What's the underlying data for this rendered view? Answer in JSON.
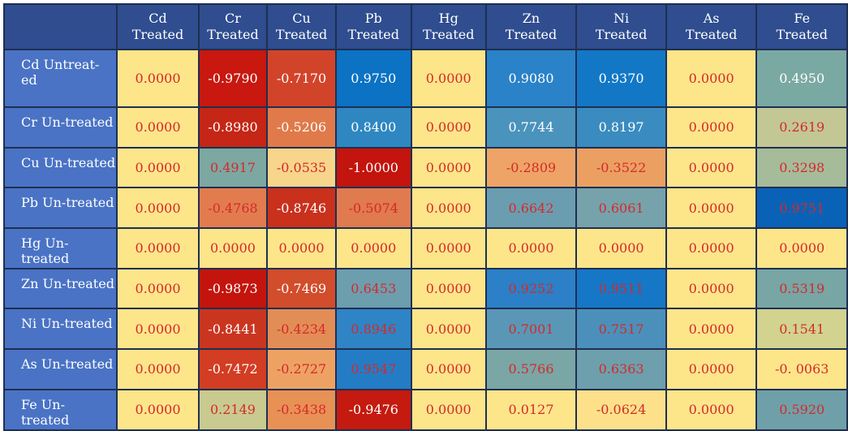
{
  "header": {
    "columns": [
      [
        "Cd",
        "Treated"
      ],
      [
        "Cr",
        "Treated"
      ],
      [
        "Cu",
        "Treated"
      ],
      [
        "Pb",
        "Treated"
      ],
      [
        "Hg",
        "Treated"
      ],
      [
        "Zn",
        "Treated"
      ],
      [
        "Ni",
        "Treated"
      ],
      [
        "As",
        "Treated"
      ],
      [
        "Fe",
        "Treated"
      ]
    ]
  },
  "rows": [
    {
      "label": "Cd Untreat- ed",
      "cells": [
        "0.0000",
        "-0.9790",
        "-0.7170",
        "0.9750",
        "0.0000",
        "0.9080",
        "0.9370",
        "0.0000",
        "0.4950"
      ]
    },
    {
      "label": "Cr Un-treated",
      "cells": [
        "0.0000",
        "-0.8980",
        "-0.5206",
        "0.8400",
        "0.0000",
        "0.7744",
        "0.8197",
        "0.0000",
        "0.2619"
      ]
    },
    {
      "label": "Cu Un-treated",
      "cells": [
        "0.0000",
        "0.4917",
        "-0.0535",
        "-1.0000",
        "0.0000",
        "-0.2809",
        "-0.3522",
        "0.0000",
        "0.3298"
      ]
    },
    {
      "label": "Pb Un-treated",
      "cells": [
        "0.0000",
        "-0.4768",
        "-0.8746",
        "-0.5074",
        "0.0000",
        "0.6642",
        "0.6061",
        "0.0000",
        "0.9751"
      ]
    },
    {
      "label": "Hg Un-treated",
      "cells": [
        "0.0000",
        "0.0000",
        "0.0000",
        "0.0000",
        "0.0000",
        "0.0000",
        "0.0000",
        "0.0000",
        "0.0000"
      ]
    },
    {
      "label": "Zn Un-treated",
      "cells": [
        "0.0000",
        "-0.9873",
        "-0.7469",
        "0.6453",
        "0.0000",
        "0.9252",
        "0.9511",
        "0.0000",
        "0.5319"
      ]
    },
    {
      "label": "Ni Un-treated",
      "cells": [
        "0.0000",
        "-0.8441",
        "-0.4234",
        "0.8946",
        "0.0000",
        "0.7001",
        "0.7517",
        "0.0000",
        "0.1541"
      ]
    },
    {
      "label": "As Un-treated",
      "cells": [
        "0.0000",
        "-0.7472",
        "-0.2727",
        "0.9547",
        "0.0000",
        "0.5766",
        "0.6363",
        "0.0000",
        "-0. 0063"
      ]
    },
    {
      "label": "Fe Un- treated",
      "cells": [
        "0.0000",
        "0.2149",
        "-0.3438",
        "-0.9476",
        "0.0000",
        "0.0127",
        "-0.0624",
        "0.0000",
        "0.5920"
      ]
    }
  ],
  "colors": {
    "header_bg": "#2f4d8f",
    "row_label_bg": "#4a73c5",
    "grid": "#1f2f52",
    "cell_fill": [
      [
        "#fde58a",
        "#c8180f",
        "#d2442a",
        "#0b72c4",
        "#fde58a",
        "#2a82c8",
        "#1278c6",
        "#fde58a",
        "#7aa9a3"
      ],
      [
        "#fde58a",
        "#c52615",
        "#e07a4a",
        "#2f87c2",
        "#fde58a",
        "#4a93bc",
        "#3a8cc0",
        "#fde58a",
        "#c3c794"
      ],
      [
        "#fde58a",
        "#7ca8a1",
        "#f7d58b",
        "#c3140d",
        "#fde58a",
        "#eea466",
        "#eba062",
        "#fde58a",
        "#a6bb9a"
      ],
      [
        "#fde58a",
        "#e27c4f",
        "#c9311d",
        "#e07a4f",
        "#fde58a",
        "#6b9db0",
        "#76a2ab",
        "#fde58a",
        "#0a62b6"
      ],
      [
        "#fde58a",
        "#fde58a",
        "#fde58a",
        "#fde58a",
        "#fde58a",
        "#fde58a",
        "#fde58a",
        "#fde58a",
        "#fde58a"
      ],
      [
        "#fde58a",
        "#c3150e",
        "#d24d2b",
        "#6d9eae",
        "#fde58a",
        "#2b80c7",
        "#1677c7",
        "#fde58a",
        "#77a6a4"
      ],
      [
        "#fde58a",
        "#ca3520",
        "#e38d56",
        "#2f84c5",
        "#fde58a",
        "#5a97b6",
        "#4b90bb",
        "#fde58a",
        "#d1d38f"
      ],
      [
        "#fde58a",
        "#d23d23",
        "#eda264",
        "#247cc5",
        "#fde58a",
        "#7aa6a6",
        "#6e9fac",
        "#fde58a",
        "#fde58a"
      ],
      [
        "#fde58a",
        "#c9ca8f",
        "#e89155",
        "#c41a0f",
        "#fde58a",
        "#fde58a",
        "#fde18a",
        "#fde58a",
        "#6fa0a9"
      ]
    ],
    "cell_text_white": [
      [
        false,
        true,
        true,
        true,
        false,
        true,
        true,
        false,
        true
      ],
      [
        false,
        true,
        true,
        true,
        false,
        true,
        true,
        false,
        false
      ],
      [
        false,
        false,
        false,
        true,
        false,
        false,
        false,
        false,
        false
      ],
      [
        false,
        false,
        true,
        false,
        false,
        false,
        false,
        false,
        false
      ],
      [
        false,
        false,
        false,
        false,
        false,
        false,
        false,
        false,
        false
      ],
      [
        false,
        true,
        true,
        false,
        false,
        false,
        false,
        false,
        false
      ],
      [
        false,
        true,
        false,
        false,
        false,
        false,
        false,
        false,
        false
      ],
      [
        false,
        true,
        false,
        false,
        false,
        false,
        false,
        false,
        false
      ],
      [
        false,
        false,
        false,
        true,
        false,
        false,
        false,
        false,
        false
      ]
    ]
  }
}
